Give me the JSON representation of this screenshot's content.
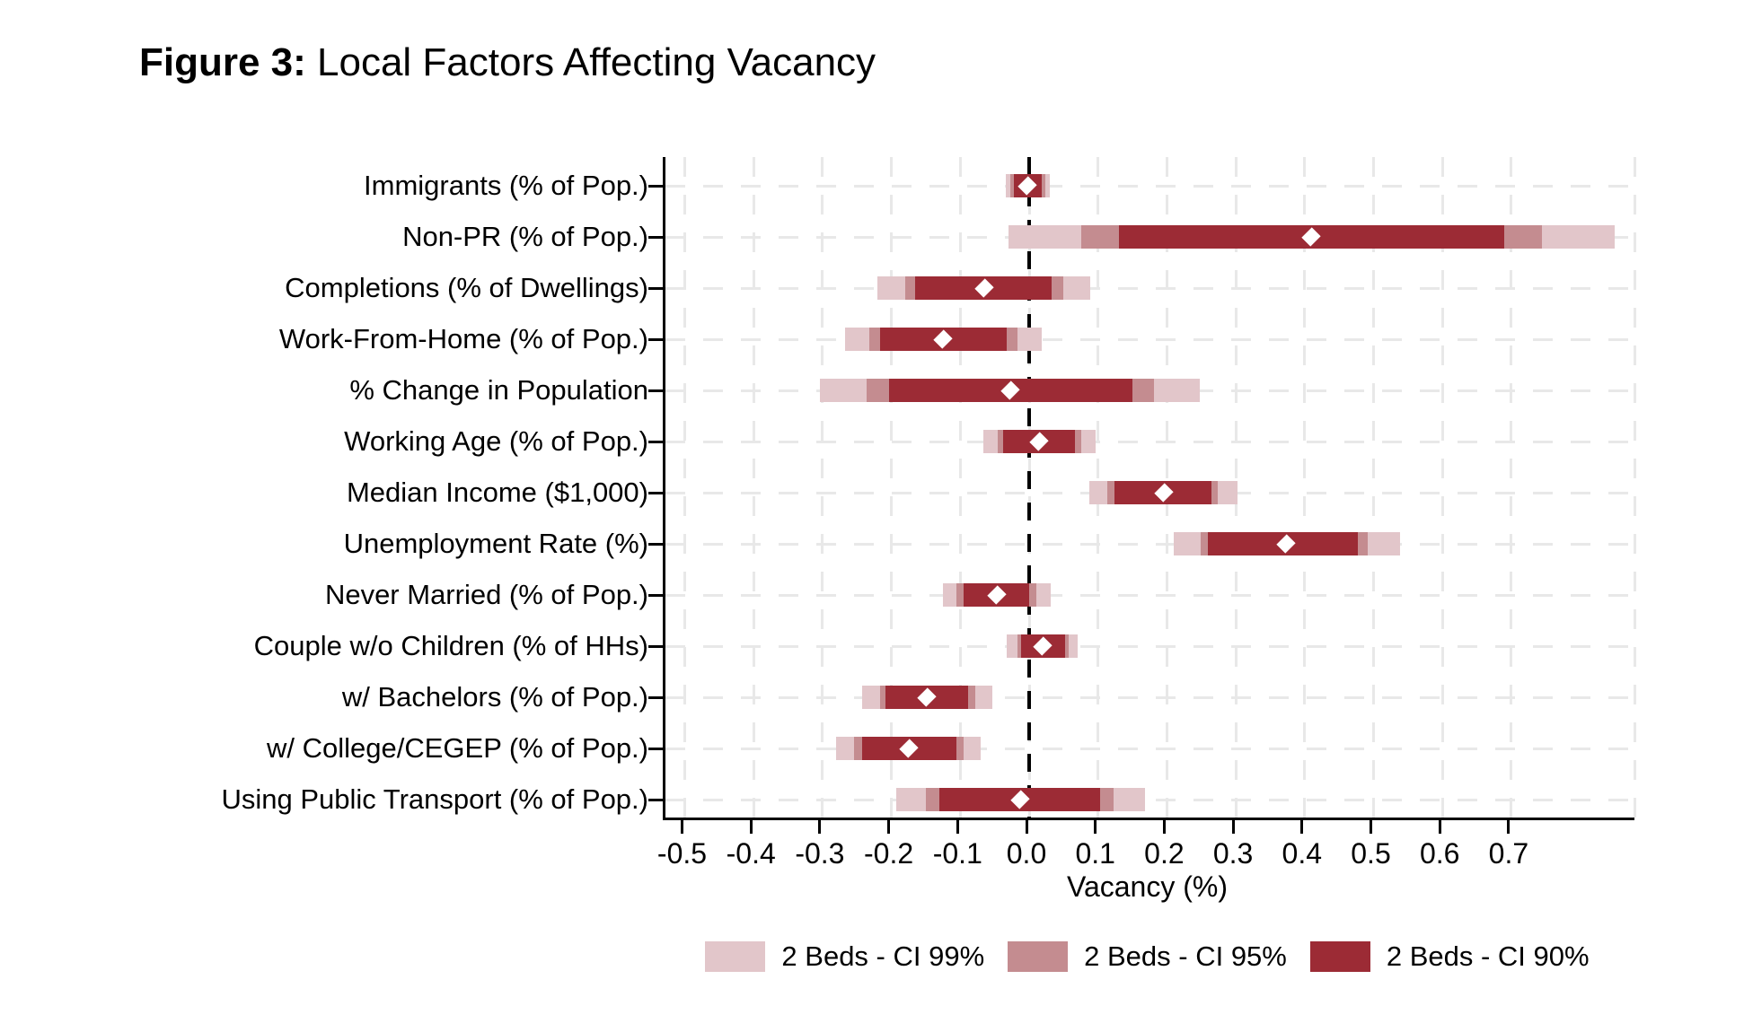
{
  "figure_title": {
    "prefix": "Figure 3:",
    "text": " Local Factors Affecting Vacancy"
  },
  "axis": {
    "x_title": "Vacancy (%)"
  },
  "colors": {
    "ci99": "#e2c6ca",
    "ci95": "#c48c90",
    "ci90": "#9c2b35",
    "estimate_marker": "#ffffff",
    "zero_line": "#000000",
    "grid": "#e8e8e8",
    "axis": "#000000",
    "background": "#ffffff"
  },
  "legend": {
    "position": "bottom",
    "entries": [
      {
        "label": "2 Beds - CI 99%",
        "color": "#e2c6ca"
      },
      {
        "label": "2 Beds - CI 95%",
        "color": "#c48c90"
      },
      {
        "label": "2 Beds - CI 90%",
        "color": "#9c2b35"
      }
    ]
  },
  "chart_data": {
    "type": "bar",
    "variant": "horizontal coefficient (forest) plot with nested confidence-interval bars and diamond point estimates",
    "title": "Figure 3: Local Factors Affecting Vacancy",
    "xlabel": "Vacancy (%)",
    "ylabel": "",
    "xlim": [
      -0.528,
      0.879
    ],
    "xticks": [
      -0.5,
      -0.4,
      -0.3,
      -0.2,
      -0.1,
      0.0,
      0.1,
      0.2,
      0.3,
      0.4,
      0.5,
      0.6,
      0.7
    ],
    "xtick_labels": [
      "-0.5",
      "-0.4",
      "-0.3",
      "-0.2",
      "-0.1",
      "0.0",
      "0.1",
      "0.2",
      "0.3",
      "0.4",
      "0.5",
      "0.6",
      "0.7"
    ],
    "zero_reference_line": 0.0,
    "grid": true,
    "legend_position": "bottom",
    "categories": [
      "Immigrants (% of Pop.)",
      "Non-PR (% of Pop.)",
      "Completions (% of Dwellings)",
      "Work-From-Home (% of Pop.)",
      "% Change in Population",
      "Working Age (% of Pop.)",
      "Median Income ($1,000)",
      "Unemployment Rate (%)",
      "Never Married (% of Pop.)",
      "Couple w/o Children (% of HHs)",
      "w/ Bachelors (% of Pop.)",
      "w/ College/CEGEP (% of Pop.)",
      "Using Public Transport (% of Pop.)"
    ],
    "series": [
      {
        "name": "2 Beds - CI 99%",
        "role": "interval",
        "color": "#e2c6ca",
        "intervals": [
          [
            -0.034,
            0.03
          ],
          [
            -0.03,
            0.85
          ],
          [
            -0.22,
            0.089
          ],
          [
            -0.267,
            0.018
          ],
          [
            -0.304,
            0.248
          ],
          [
            -0.067,
            0.097
          ],
          [
            0.088,
            0.302
          ],
          [
            0.21,
            0.539
          ],
          [
            -0.125,
            0.031
          ],
          [
            -0.032,
            0.07
          ],
          [
            -0.243,
            -0.054
          ],
          [
            -0.28,
            -0.07
          ],
          [
            -0.193,
            0.168
          ]
        ]
      },
      {
        "name": "2 Beds - CI 95%",
        "role": "interval",
        "color": "#c48c90",
        "intervals": [
          [
            -0.027,
            0.023
          ],
          [
            0.075,
            0.745
          ],
          [
            -0.18,
            0.05
          ],
          [
            -0.232,
            -0.017
          ],
          [
            -0.236,
            0.181
          ],
          [
            -0.046,
            0.075
          ],
          [
            0.113,
            0.274
          ],
          [
            0.249,
            0.491
          ],
          [
            -0.106,
            0.011
          ],
          [
            -0.017,
            0.058
          ],
          [
            -0.217,
            -0.078
          ],
          [
            -0.254,
            -0.095
          ],
          [
            -0.15,
            0.123
          ]
        ]
      },
      {
        "name": "2 Beds - CI 90%",
        "role": "interval",
        "color": "#9c2b35",
        "intervals": [
          [
            -0.022,
            0.018
          ],
          [
            0.13,
            0.69
          ],
          [
            -0.165,
            0.032
          ],
          [
            -0.217,
            -0.032
          ],
          [
            -0.204,
            0.15
          ],
          [
            -0.038,
            0.067
          ],
          [
            0.124,
            0.265
          ],
          [
            0.26,
            0.477
          ],
          [
            -0.095,
            0.0
          ],
          [
            -0.012,
            0.052
          ],
          [
            -0.208,
            -0.089
          ],
          [
            -0.243,
            -0.106
          ],
          [
            -0.13,
            0.103
          ]
        ]
      },
      {
        "name": "Point Estimate",
        "role": "marker",
        "marker": "diamond",
        "color": "#ffffff",
        "values": [
          -0.002,
          0.41,
          -0.065,
          -0.125,
          -0.028,
          0.014,
          0.195,
          0.373,
          -0.047,
          0.02,
          -0.148,
          -0.175,
          -0.013
        ]
      }
    ]
  }
}
